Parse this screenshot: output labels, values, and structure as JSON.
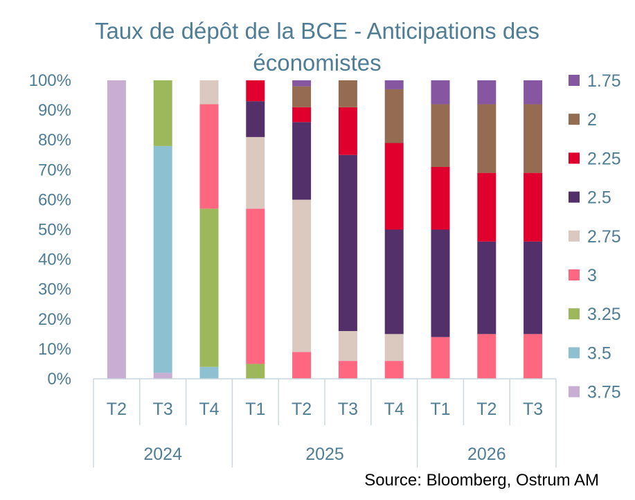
{
  "title_line1": "Taux de dépôt de la BCE - Anticipations des",
  "title_line2": "économistes",
  "source": "Source:  Bloomberg, Ostrum AM",
  "chart_data": {
    "type": "bar",
    "stacked": true,
    "title": "Taux de dépôt de la BCE - Anticipations des économistes",
    "xlabel": "",
    "ylabel": "",
    "ylim": [
      0,
      100
    ],
    "y_tick_labels": [
      "0%",
      "10%",
      "20%",
      "30%",
      "40%",
      "50%",
      "60%",
      "70%",
      "80%",
      "90%",
      "100%"
    ],
    "grid": false,
    "legend_position": "right",
    "categories": [
      "T2",
      "T3",
      "T4",
      "T1",
      "T2",
      "T3",
      "T4",
      "T1",
      "T2",
      "T3"
    ],
    "groups": [
      {
        "label": "2024",
        "count": 3
      },
      {
        "label": "2025",
        "count": 4
      },
      {
        "label": "2026",
        "count": 3
      }
    ],
    "series": [
      {
        "name": "3.75",
        "color": "#c8aed3",
        "values": [
          100,
          2,
          0,
          0,
          0,
          0,
          0,
          0,
          0,
          0
        ]
      },
      {
        "name": "3.5",
        "color": "#8dc0d1",
        "values": [
          0,
          76,
          4,
          0,
          0,
          0,
          0,
          0,
          0,
          0
        ]
      },
      {
        "name": "3.25",
        "color": "#9db85a",
        "values": [
          0,
          22,
          53,
          5,
          0,
          0,
          0,
          0,
          0,
          0
        ]
      },
      {
        "name": "3",
        "color": "#ff6680",
        "values": [
          0,
          0,
          35,
          52,
          9,
          6,
          6,
          14,
          15,
          15
        ]
      },
      {
        "name": "2.75",
        "color": "#dbc8bf",
        "values": [
          0,
          0,
          8,
          24,
          51,
          10,
          9,
          0,
          0,
          0
        ]
      },
      {
        "name": "2.5",
        "color": "#54306a",
        "values": [
          0,
          0,
          0,
          12,
          26,
          59,
          35,
          36,
          31,
          31
        ]
      },
      {
        "name": "2.25",
        "color": "#e0002d",
        "values": [
          0,
          0,
          0,
          7,
          5,
          16,
          29,
          21,
          23,
          23
        ]
      },
      {
        "name": "2",
        "color": "#956c51",
        "values": [
          0,
          0,
          0,
          0,
          7,
          9,
          18,
          21,
          23,
          23
        ]
      },
      {
        "name": "1.75",
        "color": "#8657a0",
        "values": [
          0,
          0,
          0,
          0,
          2,
          0,
          3,
          8,
          8,
          8
        ]
      }
    ]
  }
}
